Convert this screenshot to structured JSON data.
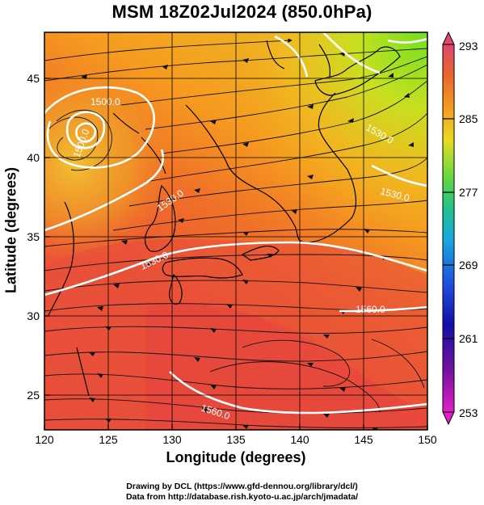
{
  "title": "MSM 18Z02Jul2024 (850.0hPa)",
  "map": {
    "x_axis": {
      "label": "Longitude (degrees)",
      "range": [
        120,
        150
      ],
      "ticks": [
        "120",
        "125",
        "130",
        "135",
        "140",
        "145",
        "150"
      ]
    },
    "y_axis": {
      "label": "Latitude  (degrees)",
      "range": [
        22.5,
        47.6
      ],
      "ticks": [
        "25",
        "30",
        "35",
        "40",
        "45"
      ]
    },
    "field_colors": {
      "hot": "#e8503a",
      "warm": "#f07028",
      "orange": "#f6a020",
      "yellow": "#e8d020",
      "green": "#98e020"
    },
    "contour_color": "#ffffff",
    "contour_labels": [
      "1500.0",
      "1500.0",
      "1530.0",
      "1530.0",
      "1530.0",
      "1530.0",
      "1560.0",
      "1560.0"
    ],
    "streamlines": "black arrows"
  },
  "colorbar": {
    "ticks": [
      "293",
      "285",
      "277",
      "269",
      "261",
      "253"
    ],
    "colors": [
      "#e0466e",
      "#e86430",
      "#f4a020",
      "#e8dc20",
      "#66d840",
      "#20c090",
      "#18a8e0",
      "#2050e0",
      "#1010a8",
      "#7010a0",
      "#e020c8"
    ]
  },
  "credits": {
    "line1": "Drawing by DCL (https://www.gfd-dennou.org/library/dcl/)",
    "line2": "Data from http://database.rish.kyoto-u.ac.jp/arch/jmadata/"
  }
}
